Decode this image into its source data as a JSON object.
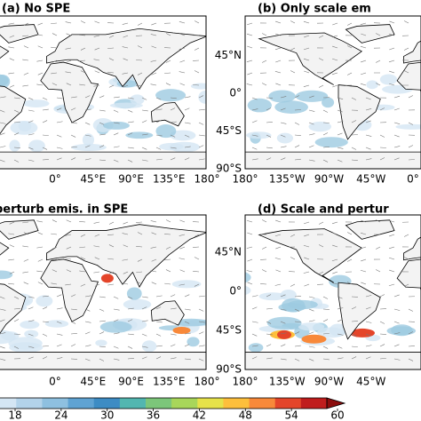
{
  "panels": [
    {
      "title": "(a) No SPE",
      "lon_labels": [
        "0°",
        "45°E",
        "90°E",
        "135°E",
        "180°"
      ]
    },
    {
      "title": "(b) Only scale em",
      "lat_labels": [
        "45°N",
        "0°",
        "45°S",
        "90°S"
      ],
      "lon_labels": [
        "180°",
        "135°W",
        "90°W",
        "45°W",
        "0°"
      ]
    },
    {
      "title": "perturb emis. in SPE",
      "lon_labels": [
        "0°",
        "45°E",
        "90°E",
        "135°E",
        "180°"
      ]
    },
    {
      "title": "(d) Scale and pertur",
      "lat_labels": [
        "45°N",
        "0°",
        "45°S",
        "90°S"
      ],
      "lon_labels": [
        "180°",
        "135°W",
        "90°W",
        "45°W"
      ]
    }
  ],
  "colorbar": {
    "ticks": [
      18,
      24,
      30,
      36,
      42,
      48,
      54,
      60
    ],
    "colors": [
      "#eef5fb",
      "#d4e6f4",
      "#b3d3ea",
      "#8ec0e0",
      "#5fa3d3",
      "#3d8cc4",
      "#52b6b0",
      "#7cc67a",
      "#a8d65a",
      "#e6e24a",
      "#fdbf3c",
      "#f8893a",
      "#e4452a",
      "#c01d1d",
      "#8c0d0d"
    ]
  }
}
